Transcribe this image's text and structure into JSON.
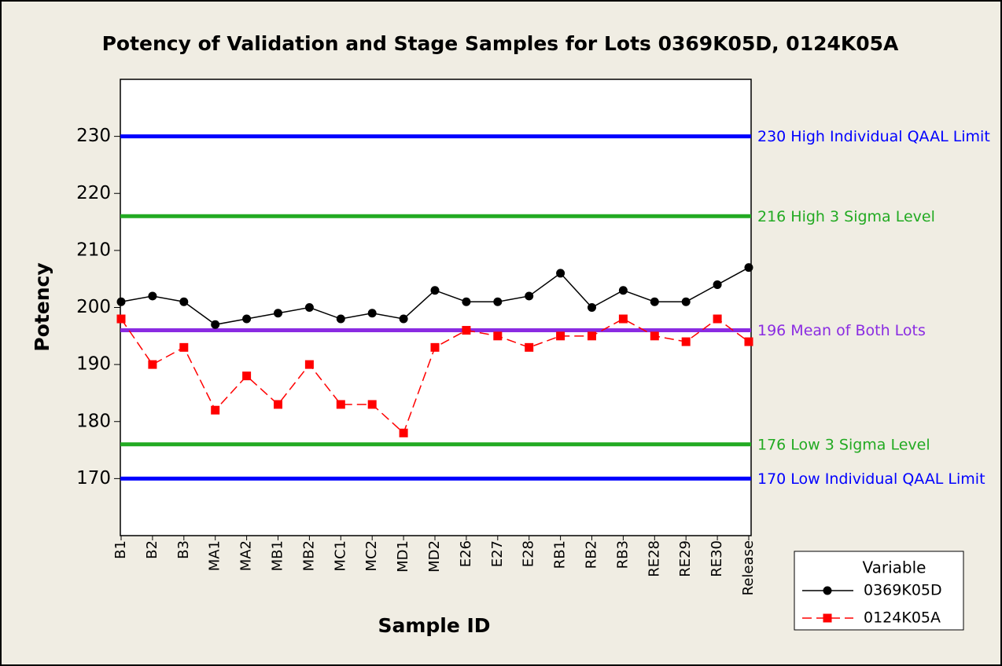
{
  "chart_data": {
    "type": "line",
    "title": "Potency of Validation and Stage Samples for Lots 0369K05D, 0124K05A",
    "x_label": "Sample ID",
    "y_label": "Potency",
    "categories": [
      "B1",
      "B2",
      "B3",
      "MA1",
      "MA2",
      "MB1",
      "MB2",
      "MC1",
      "MC2",
      "MD1",
      "MD2",
      "E26",
      "E27",
      "E28",
      "RB1",
      "RB2",
      "RB3",
      "RE28",
      "RE29",
      "RE30",
      "Release"
    ],
    "series": [
      {
        "name": "0369K05D",
        "color": "#000000",
        "marker": "circle",
        "dashed": false,
        "values": [
          201,
          202,
          201,
          197,
          198,
          199,
          200,
          198,
          199,
          198,
          203,
          201,
          201,
          202,
          206,
          200,
          203,
          201,
          201,
          204,
          207
        ]
      },
      {
        "name": "0124K05A",
        "color": "#ff0000",
        "marker": "square",
        "dashed": true,
        "values": [
          198,
          190,
          193,
          182,
          188,
          183,
          190,
          183,
          183,
          178,
          193,
          196,
          195,
          193,
          195,
          195,
          198,
          195,
          194,
          198,
          194
        ]
      }
    ],
    "reference_lines": [
      {
        "value": 230,
        "label": "230 High Individual QAAL Limit",
        "color": "#0000ff"
      },
      {
        "value": 216,
        "label": "216 High 3 Sigma Level",
        "color": "#22aa22"
      },
      {
        "value": 196,
        "label": "196 Mean of Both Lots",
        "color": "#8a2be2"
      },
      {
        "value": 176,
        "label": "176 Low 3 Sigma Level",
        "color": "#22aa22"
      },
      {
        "value": 170,
        "label": "170 Low Individual QAAL Limit",
        "color": "#0000ff"
      }
    ],
    "ylim": [
      160,
      240
    ],
    "yticks": [
      170,
      180,
      190,
      200,
      210,
      220,
      230
    ],
    "legend_title": "Variable",
    "legend_position": "bottom-right"
  }
}
